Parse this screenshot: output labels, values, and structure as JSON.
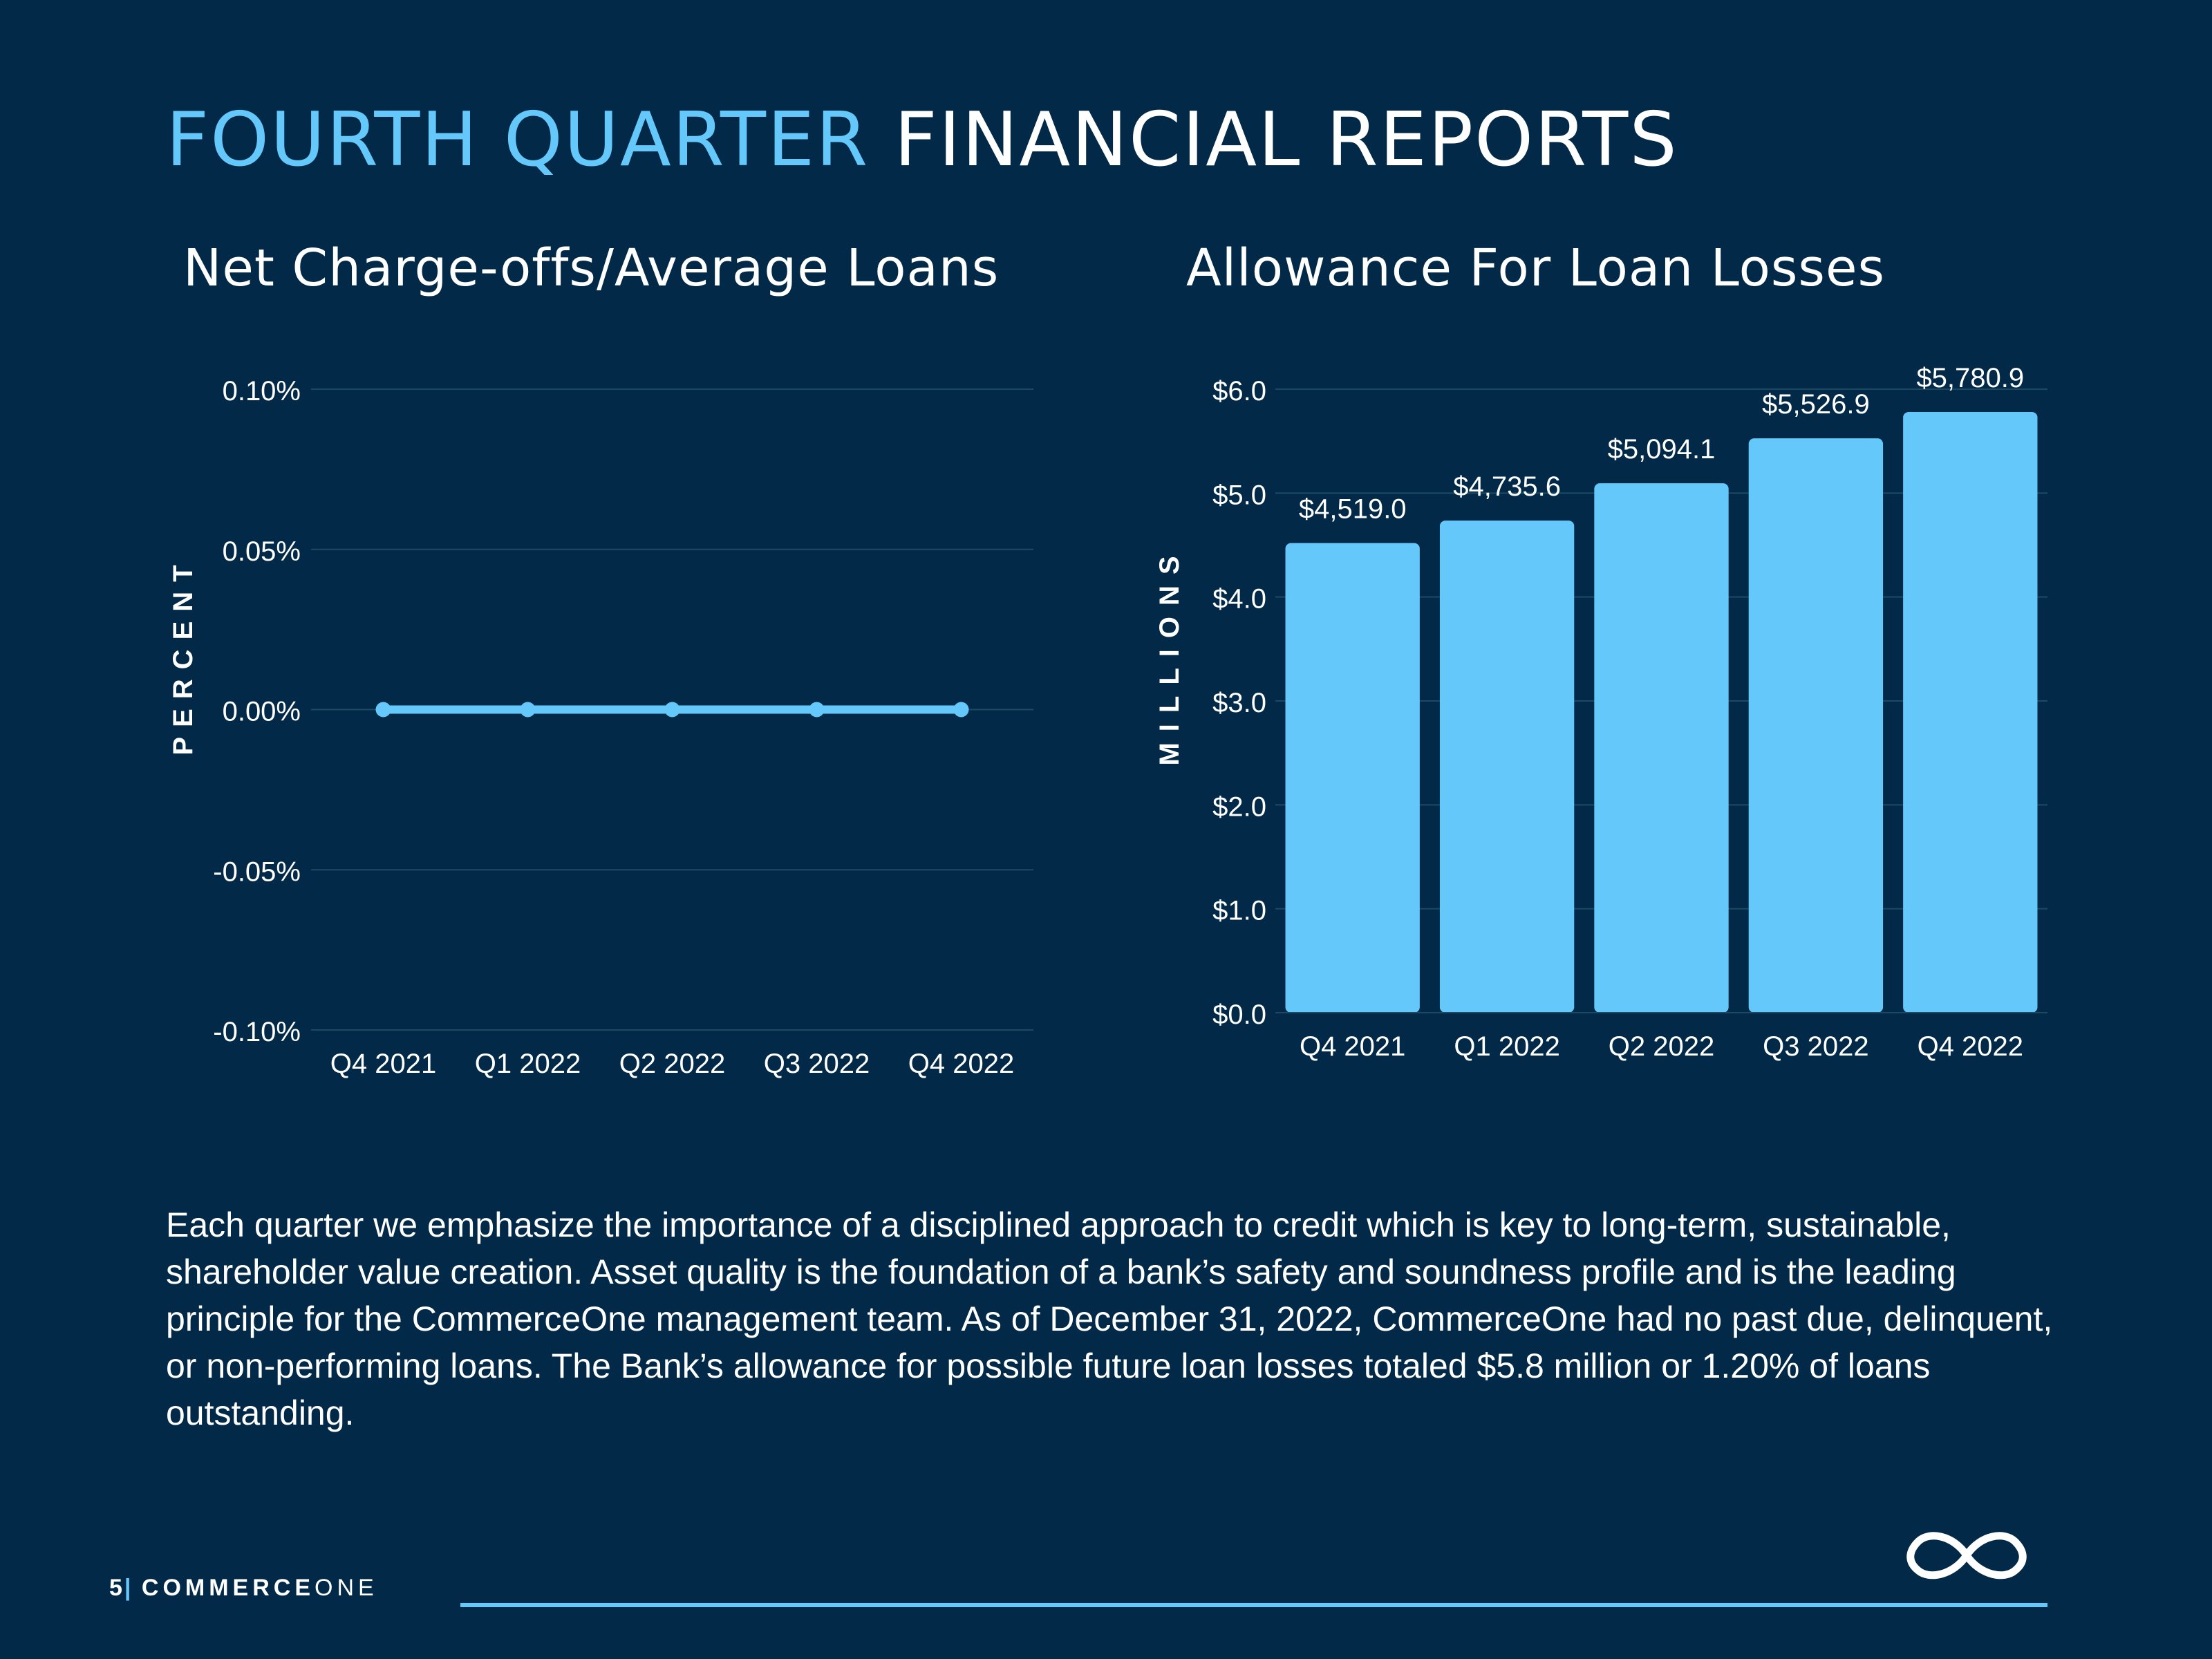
{
  "header": {
    "title_accent": "FOURTH QUARTER",
    "title_rest": "FINANCIAL REPORTS"
  },
  "colors": {
    "background": "#022a48",
    "accent": "#64c8fa",
    "text": "#ffffff",
    "gridline": "#1d4a63"
  },
  "chart_data": [
    {
      "type": "line",
      "title": "Net Charge-offs/Average Loans",
      "ylabel": "P E R C E N T",
      "xlabel": "",
      "categories": [
        "Q4 2021",
        "Q1 2022",
        "Q2 2022",
        "Q3 2022",
        "Q4 2022"
      ],
      "series": [
        {
          "values": [
            0.0,
            0.0,
            0.0,
            0.0,
            0.0
          ]
        }
      ],
      "ylim": [
        -0.1,
        0.1
      ],
      "yticks": [
        0.1,
        0.05,
        0.0,
        -0.05,
        -0.1
      ],
      "ytick_labels": [
        "0.10%",
        "0.05%",
        "0.00%",
        "-0.05%",
        "-0.10%"
      ],
      "grid": true,
      "color": "#64c8fa"
    },
    {
      "type": "bar",
      "title": "Allowance For Loan Losses",
      "ylabel": "M I L L I O N S",
      "xlabel": "",
      "categories": [
        "Q4 2021",
        "Q1 2022",
        "Q2 2022",
        "Q3 2022",
        "Q4 2022"
      ],
      "values": [
        4519.0,
        4735.6,
        5094.1,
        5526.9,
        5780.9
      ],
      "data_labels": [
        "$4,519.0",
        "$4,735.6",
        "$5,094.1",
        "$5,526.9",
        "$5,780.9"
      ],
      "ylim": [
        0,
        6000
      ],
      "yticks": [
        6000,
        5000,
        4000,
        3000,
        2000,
        1000,
        0
      ],
      "ytick_labels": [
        "$6.0",
        "$5.0",
        "$4.0",
        "$3.0",
        "$2.0",
        "$1.0",
        "$0.0"
      ],
      "grid": true,
      "color": "#64c8fa"
    }
  ],
  "body": {
    "paragraph": "Each quarter we emphasize the importance of a disciplined approach to credit which is key to long-term, sustainable, shareholder value creation. Asset quality is the foundation of a bank’s safety and soundness profile and is the leading principle for the CommerceOne management team. As of December 31, 2022, CommerceOne had no past due, delinquent, or non-performing loans. The Bank’s allowance for possible future loan losses totaled $5.8 million or 1.20% of loans outstanding."
  },
  "footer": {
    "page_number": "5",
    "separator": "|",
    "brand_bold": "COMMERCE",
    "brand_light": "ONE",
    "logo_icon": "infinity-logo-icon"
  }
}
